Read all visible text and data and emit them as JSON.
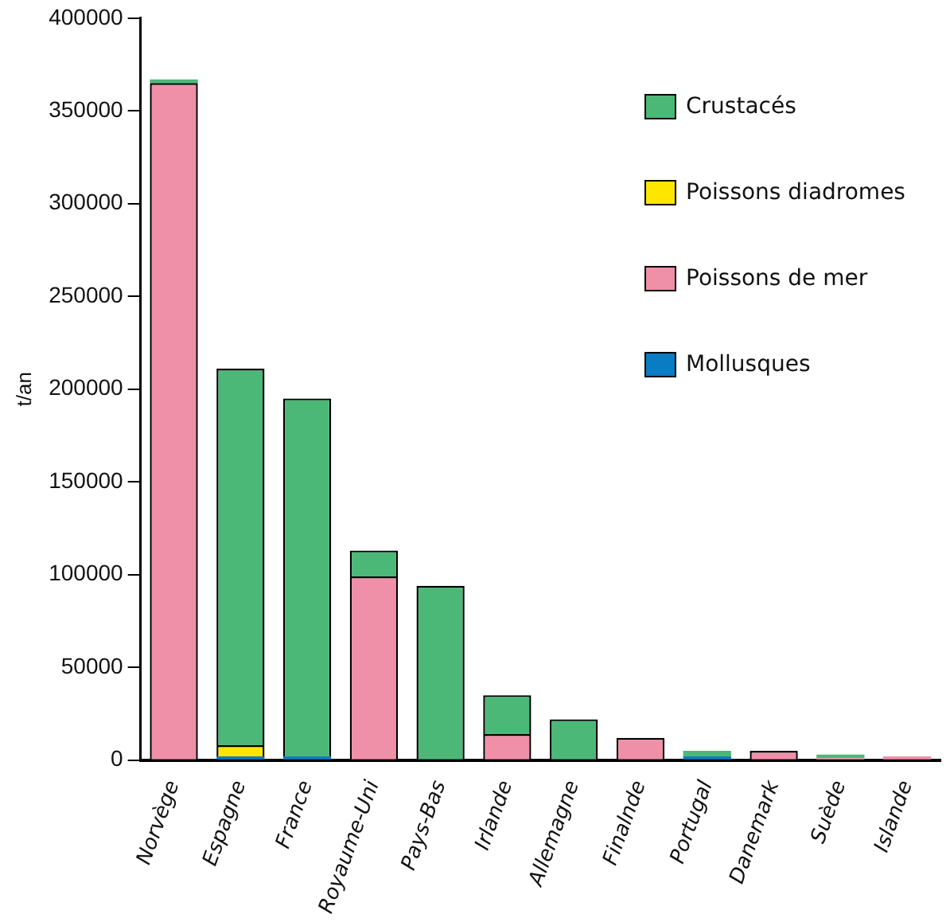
{
  "chart_data": {
    "type": "bar",
    "stacked": true,
    "ylabel": "t/an",
    "categories": [
      "Norvège",
      "Espagne",
      "France",
      "Royaume-Uni",
      "Pays-Bas",
      "Irlande",
      "Allemagne",
      "Finalnde",
      "Portugal",
      "Danemark",
      "Suède",
      "Islande"
    ],
    "series": [
      {
        "name": "Mollusques",
        "color": "#0a7cc4",
        "values": [
          0,
          2000,
          2000,
          0,
          0,
          0,
          0,
          0,
          2000,
          0,
          0,
          0
        ]
      },
      {
        "name": "Poissons de mer",
        "color": "#f08fa8",
        "values": [
          365000,
          0,
          0,
          99000,
          0,
          14000,
          0,
          12000,
          0,
          5000,
          1000,
          2000
        ]
      },
      {
        "name": "Poissons diadromes",
        "color": "#ffe600",
        "values": [
          0,
          6000,
          0,
          0,
          0,
          0,
          0,
          0,
          0,
          0,
          0,
          0
        ]
      },
      {
        "name": "Crustacés",
        "color": "#4cb878",
        "values": [
          2000,
          203000,
          193000,
          14000,
          94000,
          21000,
          22000,
          0,
          3000,
          0,
          2000,
          0
        ]
      }
    ],
    "ylim": [
      0,
      400000
    ],
    "yticks": [
      0,
      50000,
      100000,
      150000,
      200000,
      250000,
      300000,
      350000,
      400000
    ],
    "grid": false,
    "legend": "top right"
  }
}
